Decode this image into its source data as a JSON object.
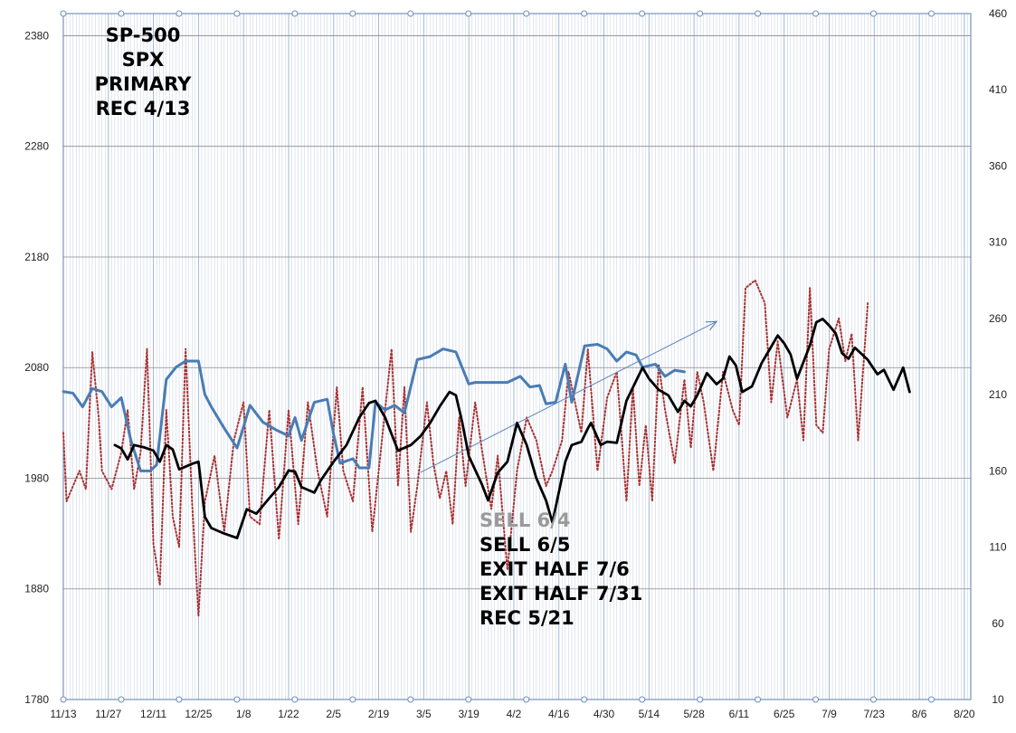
{
  "chart_data": {
    "type": "line",
    "title_lines": [
      "SP-500",
      "SPX",
      "PRIMARY",
      "REC 4/13"
    ],
    "annotations": [
      {
        "text": "SELL 6/4",
        "muted": true
      },
      {
        "text": "SELL 6/5",
        "muted": false
      },
      {
        "text": "EXIT HALF 7/6",
        "muted": false
      },
      {
        "text": "EXIT HALF 7/31",
        "muted": false
      },
      {
        "text": "REC 5/21",
        "muted": false
      }
    ],
    "x_tick_labels": [
      "11/13",
      "11/27",
      "12/11",
      "12/25",
      "1/8",
      "1/22",
      "2/5",
      "2/19",
      "3/5",
      "3/19",
      "4/2",
      "4/16",
      "4/30",
      "5/14",
      "5/28",
      "6/11",
      "6/25",
      "7/9",
      "7/23",
      "8/6",
      "8/20"
    ],
    "x_range_days": [
      0,
      282
    ],
    "y_left": {
      "ticks": [
        1780,
        1880,
        1980,
        2080,
        2180,
        2280,
        2380
      ],
      "range": [
        1780,
        2400
      ]
    },
    "y_right": {
      "ticks": [
        10,
        60,
        110,
        160,
        210,
        260,
        310,
        360,
        410,
        460
      ],
      "range": [
        10,
        460
      ]
    },
    "grid": true,
    "colors": {
      "spx": "#000000",
      "blue_series": "#4a7cb4",
      "oscillator": "#a83232",
      "trend": "#5b84b8",
      "grid": "#8ea8c8"
    },
    "series": [
      {
        "key": "spx",
        "axis": "left",
        "points": [
          [
            16,
            2010
          ],
          [
            18,
            2007
          ],
          [
            20,
            1997
          ],
          [
            22,
            2010
          ],
          [
            25,
            2008
          ],
          [
            28,
            2005
          ],
          [
            30,
            1995
          ],
          [
            32,
            2010
          ],
          [
            34,
            2006
          ],
          [
            36,
            1988
          ],
          [
            40,
            1993
          ],
          [
            42,
            1995
          ],
          [
            44,
            1945
          ],
          [
            46,
            1935
          ],
          [
            50,
            1930
          ],
          [
            54,
            1926
          ],
          [
            57,
            1952
          ],
          [
            60,
            1948
          ],
          [
            64,
            1962
          ],
          [
            67,
            1972
          ],
          [
            70,
            1987
          ],
          [
            72,
            1986
          ],
          [
            74,
            1972
          ],
          [
            78,
            1967
          ],
          [
            80,
            1978
          ],
          [
            84,
            1995
          ],
          [
            88,
            2010
          ],
          [
            92,
            2035
          ],
          [
            95,
            2048
          ],
          [
            97,
            2050
          ],
          [
            100,
            2035
          ],
          [
            102,
            2020
          ],
          [
            104,
            2005
          ],
          [
            108,
            2010
          ],
          [
            111,
            2018
          ],
          [
            114,
            2030
          ],
          [
            117,
            2045
          ],
          [
            120,
            2058
          ],
          [
            122,
            2055
          ],
          [
            124,
            2030
          ],
          [
            126,
            2000
          ],
          [
            130,
            1975
          ],
          [
            132,
            1960
          ],
          [
            135,
            1985
          ],
          [
            138,
            1995
          ],
          [
            141,
            2030
          ],
          [
            144,
            2010
          ],
          [
            147,
            1980
          ],
          [
            150,
            1960
          ],
          [
            152,
            1940
          ],
          [
            156,
            1995
          ],
          [
            158,
            2010
          ],
          [
            161,
            2013
          ],
          [
            163,
            2025
          ],
          [
            164,
            2030
          ],
          [
            167,
            2010
          ],
          [
            169,
            2013
          ],
          [
            172,
            2012
          ],
          [
            175,
            2050
          ],
          [
            178,
            2068
          ],
          [
            180,
            2080
          ],
          [
            182,
            2070
          ],
          [
            185,
            2060
          ],
          [
            188,
            2055
          ],
          [
            191,
            2040
          ],
          [
            193,
            2050
          ],
          [
            195,
            2045
          ],
          [
            197,
            2055
          ],
          [
            200,
            2075
          ],
          [
            203,
            2065
          ],
          [
            205,
            2070
          ],
          [
            207,
            2090
          ],
          [
            209,
            2082
          ],
          [
            211,
            2058
          ],
          [
            214,
            2063
          ],
          [
            217,
            2084
          ],
          [
            220,
            2099
          ],
          [
            222,
            2109
          ],
          [
            224,
            2102
          ],
          [
            226,
            2092
          ],
          [
            228,
            2070
          ],
          [
            230,
            2085
          ],
          [
            232,
            2100
          ],
          [
            234,
            2121
          ],
          [
            236,
            2124
          ],
          [
            238,
            2118
          ],
          [
            240,
            2111
          ],
          [
            242,
            2093
          ],
          [
            244,
            2088
          ],
          [
            246,
            2098
          ],
          [
            250,
            2087
          ],
          [
            253,
            2074
          ],
          [
            255,
            2078
          ],
          [
            258,
            2060
          ],
          [
            261,
            2080
          ],
          [
            263,
            2058
          ]
        ]
      },
      {
        "key": "blue_series",
        "axis": "right",
        "points": [
          [
            0,
            212
          ],
          [
            3,
            211
          ],
          [
            6,
            202
          ],
          [
            9,
            214
          ],
          [
            12,
            212
          ],
          [
            15,
            202
          ],
          [
            18,
            208
          ],
          [
            21,
            180
          ],
          [
            24,
            160
          ],
          [
            27,
            160
          ],
          [
            29,
            164
          ],
          [
            32,
            220
          ],
          [
            35,
            228
          ],
          [
            38,
            232
          ],
          [
            42,
            232
          ],
          [
            44,
            210
          ],
          [
            46,
            202
          ],
          [
            50,
            188
          ],
          [
            54,
            175
          ],
          [
            58,
            203
          ],
          [
            62,
            192
          ],
          [
            66,
            187
          ],
          [
            70,
            183
          ],
          [
            72,
            195
          ],
          [
            74,
            180
          ],
          [
            78,
            205
          ],
          [
            82,
            207
          ],
          [
            84,
            184
          ],
          [
            86,
            165
          ],
          [
            90,
            168
          ],
          [
            92,
            162
          ],
          [
            95,
            162
          ],
          [
            97,
            205
          ],
          [
            100,
            200
          ],
          [
            103,
            203
          ],
          [
            106,
            198
          ],
          [
            110,
            233
          ],
          [
            114,
            235
          ],
          [
            118,
            240
          ],
          [
            122,
            238
          ],
          [
            126,
            217
          ],
          [
            128,
            218
          ],
          [
            132,
            218
          ],
          [
            135,
            218
          ],
          [
            138,
            218
          ],
          [
            142,
            222
          ],
          [
            145,
            215
          ],
          [
            148,
            216
          ],
          [
            150,
            204
          ],
          [
            153,
            205
          ],
          [
            156,
            230
          ],
          [
            158,
            205
          ],
          [
            162,
            242
          ],
          [
            166,
            243
          ],
          [
            169,
            240
          ],
          [
            172,
            232
          ],
          [
            175,
            238
          ],
          [
            178,
            236
          ],
          [
            180,
            228
          ],
          [
            184,
            230
          ],
          [
            187,
            222
          ],
          [
            190,
            226
          ],
          [
            193,
            225
          ]
        ]
      },
      {
        "key": "oscillator",
        "axis": "right",
        "points": [
          [
            0,
            185
          ],
          [
            1,
            140
          ],
          [
            3,
            150
          ],
          [
            5,
            160
          ],
          [
            7,
            148
          ],
          [
            9,
            238
          ],
          [
            11,
            195
          ],
          [
            12,
            160
          ],
          [
            15,
            148
          ],
          [
            18,
            172
          ],
          [
            20,
            200
          ],
          [
            22,
            148
          ],
          [
            24,
            172
          ],
          [
            26,
            240
          ],
          [
            28,
            112
          ],
          [
            30,
            85
          ],
          [
            32,
            200
          ],
          [
            34,
            130
          ],
          [
            36,
            110
          ],
          [
            38,
            240
          ],
          [
            40,
            140
          ],
          [
            42,
            65
          ],
          [
            44,
            140
          ],
          [
            47,
            170
          ],
          [
            50,
            120
          ],
          [
            53,
            180
          ],
          [
            56,
            205
          ],
          [
            58,
            130
          ],
          [
            61,
            125
          ],
          [
            64,
            200
          ],
          [
            67,
            115
          ],
          [
            70,
            200
          ],
          [
            73,
            125
          ],
          [
            76,
            205
          ],
          [
            79,
            160
          ],
          [
            82,
            130
          ],
          [
            85,
            215
          ],
          [
            87,
            160
          ],
          [
            90,
            140
          ],
          [
            93,
            215
          ],
          [
            96,
            120
          ],
          [
            100,
            200
          ],
          [
            102,
            240
          ],
          [
            104,
            150
          ],
          [
            106,
            215
          ],
          [
            108,
            120
          ],
          [
            110,
            150
          ],
          [
            113,
            205
          ],
          [
            115,
            165
          ],
          [
            117,
            142
          ],
          [
            119,
            160
          ],
          [
            121,
            125
          ],
          [
            123,
            195
          ],
          [
            125,
            150
          ],
          [
            128,
            205
          ],
          [
            130,
            175
          ],
          [
            133,
            135
          ],
          [
            135,
            170
          ],
          [
            138,
            95
          ],
          [
            141,
            160
          ],
          [
            144,
            195
          ],
          [
            147,
            180
          ],
          [
            150,
            150
          ],
          [
            152,
            160
          ],
          [
            155,
            180
          ],
          [
            157,
            225
          ],
          [
            159,
            205
          ],
          [
            161,
            185
          ],
          [
            163,
            240
          ],
          [
            166,
            160
          ],
          [
            169,
            208
          ],
          [
            172,
            225
          ],
          [
            175,
            140
          ],
          [
            177,
            215
          ],
          [
            179,
            150
          ],
          [
            181,
            190
          ],
          [
            183,
            140
          ],
          [
            185,
            230
          ],
          [
            187,
            200
          ],
          [
            190,
            165
          ],
          [
            193,
            220
          ],
          [
            195,
            175
          ],
          [
            197,
            225
          ],
          [
            199,
            205
          ],
          [
            202,
            160
          ],
          [
            205,
            225
          ],
          [
            208,
            200
          ],
          [
            210,
            190
          ],
          [
            212,
            280
          ],
          [
            215,
            285
          ],
          [
            218,
            270
          ],
          [
            220,
            205
          ],
          [
            222,
            245
          ],
          [
            225,
            195
          ],
          [
            228,
            220
          ],
          [
            230,
            180
          ],
          [
            232,
            280
          ],
          [
            234,
            190
          ],
          [
            236,
            185
          ],
          [
            238,
            240
          ],
          [
            241,
            260
          ],
          [
            243,
            232
          ],
          [
            245,
            250
          ],
          [
            247,
            180
          ],
          [
            250,
            270
          ]
        ]
      },
      {
        "key": "trend",
        "axis": "right",
        "points": [
          [
            111,
            159
          ],
          [
            203,
            258
          ]
        ]
      }
    ]
  }
}
